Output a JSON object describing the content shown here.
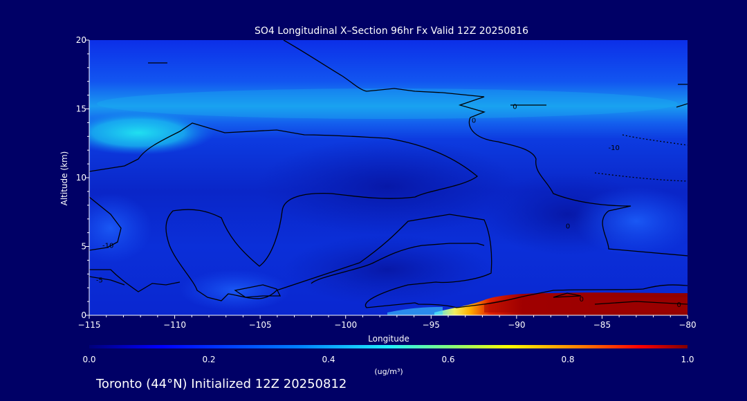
{
  "chart_data": {
    "type": "heatmap",
    "title": "SO4 Longitudinal X–Section 96hr  Fx Valid 12Z 20250816",
    "subtitle": "Toronto (44°N) Initialized 12Z 20250812",
    "xlabel": "Longitude",
    "ylabel": "Altitude (km)",
    "xlim": [
      -115,
      -80
    ],
    "ylim": [
      0,
      20
    ],
    "x_ticks": [
      -115,
      -110,
      -105,
      -100,
      -95,
      -90,
      -85,
      -80
    ],
    "y_ticks": [
      0,
      5,
      10,
      15,
      20
    ],
    "colorbar": {
      "label": "(ug/m³)",
      "range": [
        0.0,
        1.0
      ],
      "ticks": [
        "0.0",
        "0.2",
        "0.4",
        "0.6",
        "0.8",
        "1.0"
      ]
    },
    "grid": false,
    "contour_labels": [
      {
        "text": "0",
        "x": -90.1,
        "y": 15.2
      },
      {
        "text": "0",
        "x": -92.5,
        "y": 14.2
      },
      {
        "text": "-10",
        "x": -84.3,
        "y": 12.2
      },
      {
        "text": "-10",
        "x": -113.9,
        "y": 5.1
      },
      {
        "text": "-5",
        "x": -114.4,
        "y": 2.6
      },
      {
        "text": "0",
        "x": -87.0,
        "y": 6.5
      },
      {
        "text": "0",
        "x": -80.5,
        "y": 0.8
      },
      {
        "text": "0",
        "x": -86.2,
        "y": 1.2
      }
    ],
    "high_concentration_region": {
      "x_range": [
        -92,
        -80
      ],
      "y_range": [
        0,
        1.6
      ],
      "value": 1.0
    }
  }
}
